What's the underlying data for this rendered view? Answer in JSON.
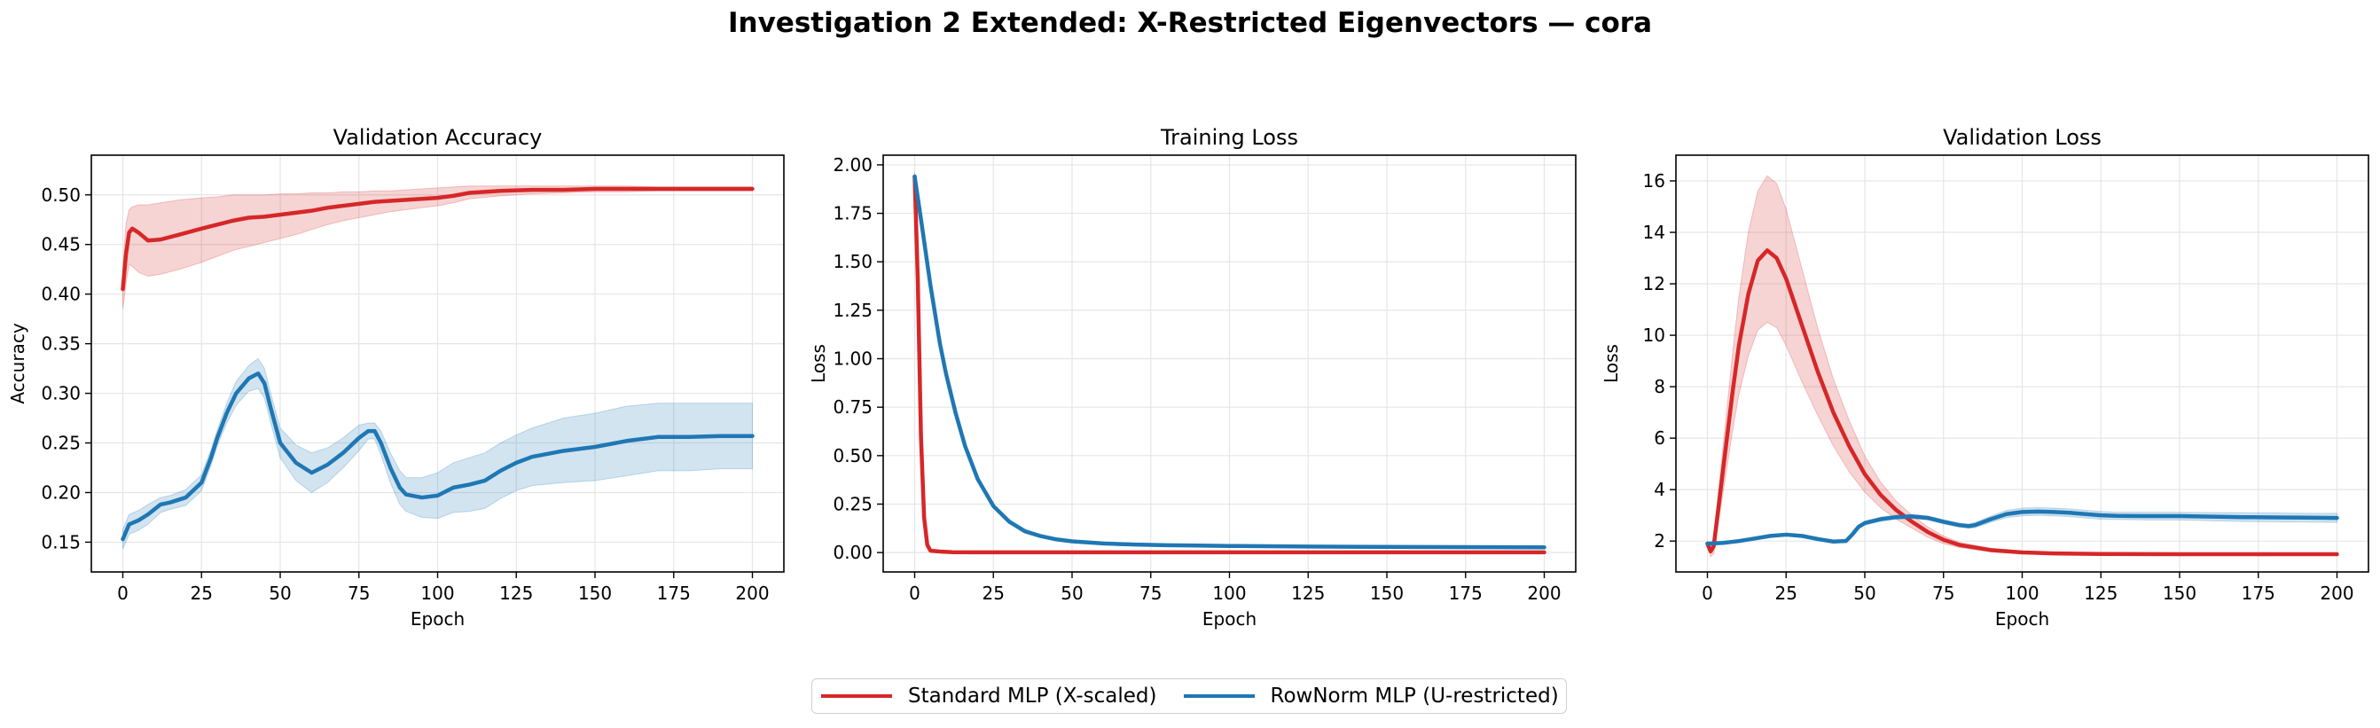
{
  "suptitle": "Investigation 2 Extended: X-Restricted Eigenvectors — cora",
  "colors": {
    "standard": "#d62728",
    "rownorm": "#1f77b4",
    "grid": "#e6e6e6",
    "axes": "#000000"
  },
  "legend": [
    {
      "label": "Standard MLP (X-scaled)",
      "color": "#d62728"
    },
    {
      "label": "RowNorm MLP (U-restricted)",
      "color": "#1f77b4"
    }
  ],
  "chart_data": [
    {
      "type": "line",
      "title": "Validation Accuracy",
      "xlabel": "Epoch",
      "ylabel": "Accuracy",
      "xlim": [
        -10,
        210
      ],
      "ylim": [
        0.12,
        0.54
      ],
      "xticks": [
        0,
        25,
        50,
        75,
        100,
        125,
        150,
        175,
        200
      ],
      "yticks": [
        0.15,
        0.2,
        0.25,
        0.3,
        0.35,
        0.4,
        0.45,
        0.5
      ],
      "ytick_labels": [
        "0.15",
        "0.20",
        "0.25",
        "0.30",
        "0.35",
        "0.40",
        "0.45",
        "0.50"
      ],
      "grid": true,
      "series": [
        {
          "name": "Standard MLP (X-scaled)",
          "color": "#d62728",
          "x": [
            0,
            1,
            2,
            3,
            5,
            8,
            12,
            18,
            25,
            30,
            35,
            40,
            45,
            50,
            55,
            60,
            65,
            70,
            75,
            80,
            85,
            90,
            95,
            100,
            105,
            110,
            120,
            130,
            140,
            150,
            160,
            170,
            180,
            190,
            200
          ],
          "mean": [
            0.405,
            0.44,
            0.462,
            0.466,
            0.462,
            0.454,
            0.455,
            0.46,
            0.466,
            0.47,
            0.474,
            0.477,
            0.478,
            0.48,
            0.482,
            0.484,
            0.487,
            0.489,
            0.491,
            0.493,
            0.494,
            0.495,
            0.496,
            0.497,
            0.499,
            0.502,
            0.504,
            0.505,
            0.505,
            0.506,
            0.506,
            0.506,
            0.506,
            0.506,
            0.506
          ],
          "upper": [
            0.425,
            0.47,
            0.485,
            0.488,
            0.49,
            0.49,
            0.492,
            0.495,
            0.497,
            0.498,
            0.5,
            0.5,
            0.5,
            0.501,
            0.501,
            0.502,
            0.502,
            0.503,
            0.503,
            0.504,
            0.504,
            0.505,
            0.506,
            0.507,
            0.508,
            0.509,
            0.509,
            0.509,
            0.509,
            0.509,
            0.509,
            0.508,
            0.508,
            0.508,
            0.508
          ],
          "lower": [
            0.385,
            0.41,
            0.43,
            0.428,
            0.422,
            0.418,
            0.42,
            0.425,
            0.432,
            0.438,
            0.444,
            0.448,
            0.452,
            0.456,
            0.46,
            0.465,
            0.47,
            0.474,
            0.477,
            0.48,
            0.483,
            0.485,
            0.487,
            0.489,
            0.492,
            0.496,
            0.499,
            0.501,
            0.502,
            0.503,
            0.503,
            0.504,
            0.504,
            0.504,
            0.504
          ]
        },
        {
          "name": "RowNorm MLP (U-restricted)",
          "color": "#1f77b4",
          "x": [
            0,
            2,
            5,
            8,
            12,
            15,
            20,
            25,
            28,
            30,
            33,
            36,
            40,
            43,
            45,
            47,
            50,
            55,
            60,
            65,
            70,
            75,
            78,
            80,
            82,
            85,
            88,
            90,
            95,
            100,
            105,
            110,
            115,
            120,
            125,
            130,
            140,
            150,
            160,
            170,
            180,
            190,
            200
          ],
          "mean": [
            0.153,
            0.168,
            0.172,
            0.178,
            0.188,
            0.19,
            0.195,
            0.21,
            0.235,
            0.255,
            0.28,
            0.3,
            0.315,
            0.32,
            0.31,
            0.285,
            0.25,
            0.23,
            0.22,
            0.228,
            0.24,
            0.255,
            0.262,
            0.262,
            0.25,
            0.225,
            0.205,
            0.198,
            0.195,
            0.197,
            0.205,
            0.208,
            0.212,
            0.222,
            0.23,
            0.236,
            0.242,
            0.246,
            0.252,
            0.256,
            0.256,
            0.257,
            0.257
          ],
          "upper": [
            0.163,
            0.178,
            0.182,
            0.188,
            0.195,
            0.197,
            0.203,
            0.218,
            0.243,
            0.263,
            0.29,
            0.312,
            0.328,
            0.335,
            0.325,
            0.3,
            0.265,
            0.248,
            0.24,
            0.245,
            0.255,
            0.268,
            0.27,
            0.27,
            0.262,
            0.24,
            0.222,
            0.215,
            0.215,
            0.22,
            0.23,
            0.235,
            0.24,
            0.25,
            0.258,
            0.265,
            0.275,
            0.28,
            0.287,
            0.29,
            0.29,
            0.29,
            0.29
          ],
          "lower": [
            0.143,
            0.158,
            0.162,
            0.168,
            0.18,
            0.183,
            0.187,
            0.202,
            0.227,
            0.247,
            0.27,
            0.288,
            0.302,
            0.305,
            0.295,
            0.27,
            0.235,
            0.212,
            0.2,
            0.21,
            0.225,
            0.242,
            0.254,
            0.254,
            0.238,
            0.21,
            0.188,
            0.181,
            0.175,
            0.174,
            0.18,
            0.181,
            0.184,
            0.194,
            0.202,
            0.207,
            0.21,
            0.212,
            0.217,
            0.222,
            0.222,
            0.224,
            0.224
          ]
        }
      ]
    },
    {
      "type": "line",
      "title": "Training Loss",
      "xlabel": "Epoch",
      "ylabel": "Loss",
      "xlim": [
        -10,
        210
      ],
      "ylim": [
        -0.1,
        2.05
      ],
      "xticks": [
        0,
        25,
        50,
        75,
        100,
        125,
        150,
        175,
        200
      ],
      "yticks": [
        0.0,
        0.25,
        0.5,
        0.75,
        1.0,
        1.25,
        1.5,
        1.75,
        2.0
      ],
      "ytick_labels": [
        "0.00",
        "0.25",
        "0.50",
        "0.75",
        "1.00",
        "1.25",
        "1.50",
        "1.75",
        "2.00"
      ],
      "grid": true,
      "series": [
        {
          "name": "Standard MLP (X-scaled)",
          "color": "#d62728",
          "x": [
            0,
            1,
            2,
            3,
            4,
            5,
            8,
            12,
            20,
            50,
            100,
            150,
            200
          ],
          "mean": [
            1.94,
            1.4,
            0.6,
            0.18,
            0.04,
            0.01,
            0.005,
            0.002,
            0.001,
            0.001,
            0.001,
            0.001,
            0.001
          ],
          "upper": [
            1.96,
            1.44,
            0.64,
            0.2,
            0.05,
            0.015,
            0.007,
            0.003,
            0.002,
            0.002,
            0.002,
            0.002,
            0.002
          ],
          "lower": [
            1.92,
            1.36,
            0.56,
            0.16,
            0.03,
            0.005,
            0.003,
            0.001,
            0.0,
            0.0,
            0.0,
            0.0,
            0.0
          ]
        },
        {
          "name": "RowNorm MLP (U-restricted)",
          "color": "#1f77b4",
          "x": [
            0,
            2,
            5,
            8,
            10,
            13,
            16,
            20,
            25,
            30,
            35,
            40,
            45,
            50,
            60,
            70,
            80,
            90,
            100,
            125,
            150,
            175,
            200
          ],
          "mean": [
            1.94,
            1.72,
            1.38,
            1.08,
            0.92,
            0.72,
            0.55,
            0.38,
            0.24,
            0.16,
            0.11,
            0.085,
            0.068,
            0.058,
            0.047,
            0.041,
            0.038,
            0.036,
            0.034,
            0.031,
            0.029,
            0.028,
            0.027
          ],
          "upper": [
            1.95,
            1.73,
            1.39,
            1.09,
            0.93,
            0.73,
            0.56,
            0.39,
            0.25,
            0.17,
            0.12,
            0.092,
            0.075,
            0.064,
            0.053,
            0.047,
            0.044,
            0.042,
            0.04,
            0.037,
            0.035,
            0.034,
            0.033
          ],
          "lower": [
            1.93,
            1.71,
            1.37,
            1.07,
            0.91,
            0.71,
            0.54,
            0.37,
            0.23,
            0.15,
            0.1,
            0.078,
            0.061,
            0.052,
            0.041,
            0.035,
            0.032,
            0.03,
            0.028,
            0.025,
            0.023,
            0.022,
            0.021
          ]
        }
      ]
    },
    {
      "type": "line",
      "title": "Validation Loss",
      "xlabel": "Epoch",
      "ylabel": "Loss",
      "xlim": [
        -10,
        210
      ],
      "ylim": [
        0.8,
        17.0
      ],
      "xticks": [
        0,
        25,
        50,
        75,
        100,
        125,
        150,
        175,
        200
      ],
      "yticks": [
        2,
        4,
        6,
        8,
        10,
        12,
        14,
        16
      ],
      "ytick_labels": [
        "2",
        "4",
        "6",
        "8",
        "10",
        "12",
        "14",
        "16"
      ],
      "grid": true,
      "series": [
        {
          "name": "Standard MLP (X-scaled)",
          "color": "#d62728",
          "x": [
            0,
            1,
            2,
            3,
            5,
            8,
            10,
            13,
            16,
            19,
            22,
            25,
            30,
            35,
            40,
            45,
            50,
            55,
            60,
            65,
            70,
            75,
            80,
            90,
            100,
            110,
            125,
            150,
            175,
            200
          ],
          "mean": [
            1.9,
            1.6,
            1.8,
            2.8,
            4.8,
            7.8,
            9.6,
            11.6,
            12.9,
            13.3,
            13.0,
            12.2,
            10.4,
            8.6,
            7.0,
            5.7,
            4.6,
            3.8,
            3.2,
            2.75,
            2.35,
            2.05,
            1.85,
            1.65,
            1.56,
            1.52,
            1.5,
            1.49,
            1.49,
            1.49
          ],
          "upper": [
            2.0,
            1.8,
            2.1,
            3.3,
            5.7,
            9.3,
            11.5,
            14.0,
            15.6,
            16.2,
            15.9,
            14.9,
            12.6,
            10.3,
            8.3,
            6.7,
            5.3,
            4.3,
            3.55,
            3.0,
            2.55,
            2.2,
            1.95,
            1.72,
            1.61,
            1.56,
            1.53,
            1.52,
            1.52,
            1.52
          ],
          "lower": [
            1.8,
            1.4,
            1.5,
            2.3,
            3.9,
            6.3,
            7.7,
            9.2,
            10.2,
            10.5,
            10.3,
            9.6,
            8.2,
            6.9,
            5.7,
            4.7,
            3.9,
            3.3,
            2.85,
            2.5,
            2.15,
            1.9,
            1.75,
            1.58,
            1.51,
            1.48,
            1.47,
            1.46,
            1.46,
            1.46
          ]
        },
        {
          "name": "RowNorm MLP (U-restricted)",
          "color": "#1f77b4",
          "x": [
            0,
            5,
            10,
            15,
            20,
            25,
            30,
            35,
            40,
            44,
            46,
            48,
            50,
            55,
            60,
            65,
            70,
            75,
            80,
            83,
            85,
            90,
            95,
            100,
            105,
            110,
            115,
            120,
            125,
            130,
            140,
            150,
            160,
            170,
            180,
            190,
            200
          ],
          "mean": [
            1.9,
            1.93,
            2.0,
            2.1,
            2.2,
            2.25,
            2.2,
            2.08,
            1.98,
            2.0,
            2.25,
            2.55,
            2.7,
            2.85,
            2.93,
            2.96,
            2.9,
            2.75,
            2.62,
            2.58,
            2.62,
            2.85,
            3.05,
            3.13,
            3.15,
            3.13,
            3.1,
            3.05,
            3.0,
            2.98,
            2.97,
            2.97,
            2.95,
            2.93,
            2.92,
            2.91,
            2.9
          ],
          "upper": [
            1.93,
            1.97,
            2.05,
            2.15,
            2.25,
            2.3,
            2.25,
            2.13,
            2.03,
            2.05,
            2.3,
            2.62,
            2.78,
            2.93,
            3.01,
            3.04,
            2.98,
            2.83,
            2.7,
            2.66,
            2.72,
            2.97,
            3.19,
            3.28,
            3.3,
            3.28,
            3.25,
            3.2,
            3.15,
            3.12,
            3.12,
            3.12,
            3.11,
            3.1,
            3.09,
            3.08,
            3.08
          ],
          "lower": [
            1.87,
            1.89,
            1.95,
            2.05,
            2.15,
            2.2,
            2.15,
            2.03,
            1.93,
            1.95,
            2.2,
            2.48,
            2.62,
            2.77,
            2.85,
            2.88,
            2.82,
            2.67,
            2.54,
            2.5,
            2.52,
            2.73,
            2.91,
            2.98,
            3.0,
            2.98,
            2.95,
            2.9,
            2.85,
            2.84,
            2.82,
            2.82,
            2.79,
            2.76,
            2.75,
            2.74,
            2.72
          ]
        }
      ]
    }
  ]
}
